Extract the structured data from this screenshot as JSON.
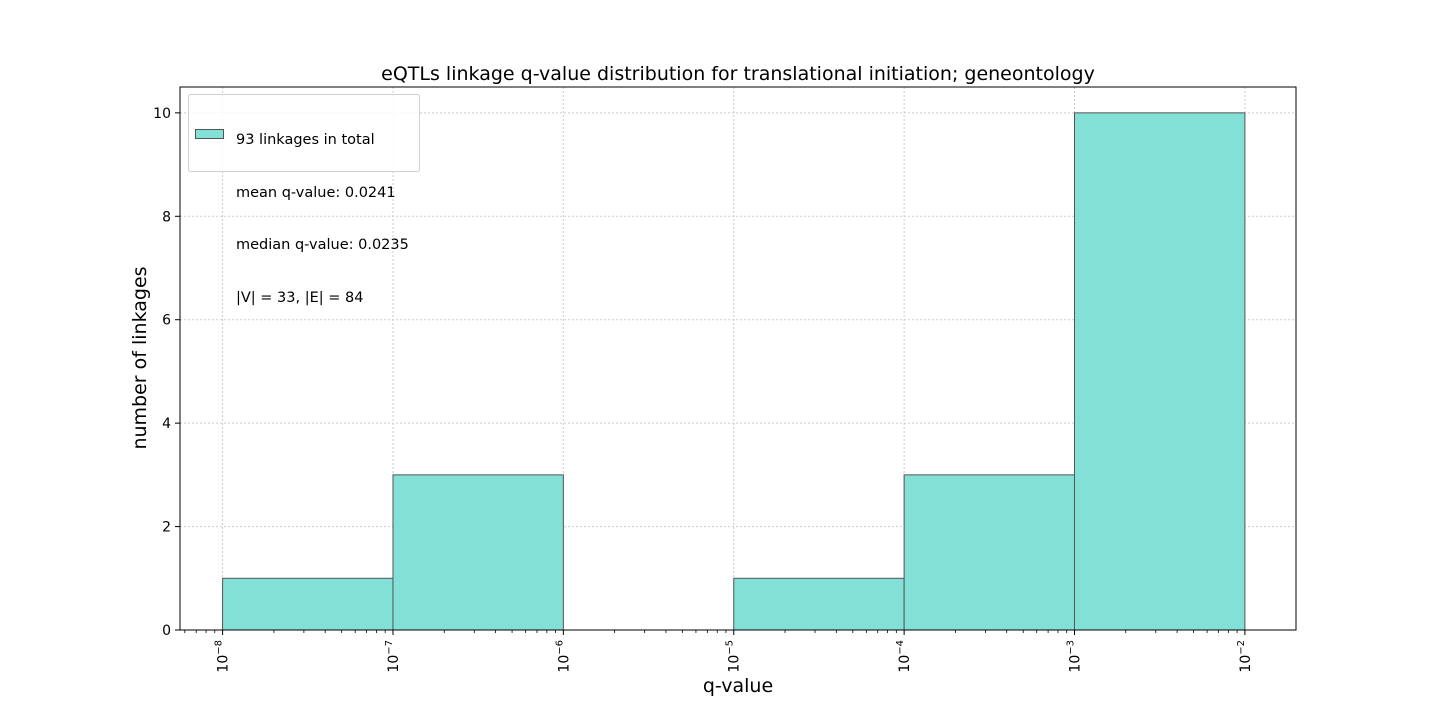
{
  "chart_data": {
    "type": "bar",
    "title": "eQTLs linkage q-value distribution for translational initiation; geneontology",
    "xlabel": "q-value",
    "ylabel": "number of linkages",
    "x_scale": "log",
    "xlim_exponent": [
      -8.25,
      -1.7
    ],
    "ylim": [
      0,
      10.5
    ],
    "grid": true,
    "bins": [
      {
        "range": [
          "1e-8",
          "1e-7"
        ],
        "value": 1
      },
      {
        "range": [
          "1e-7",
          "1e-6"
        ],
        "value": 3
      },
      {
        "range": [
          "1e-6",
          "1e-5"
        ],
        "value": 0
      },
      {
        "range": [
          "1e-5",
          "1e-4"
        ],
        "value": 1
      },
      {
        "range": [
          "1e-4",
          "1e-3"
        ],
        "value": 3
      },
      {
        "range": [
          "1e-3",
          "1e-2"
        ],
        "value": 10
      }
    ],
    "x_ticks": [
      {
        "exp": -8,
        "base": "10",
        "sup": "−8"
      },
      {
        "exp": -7,
        "base": "10",
        "sup": "−7"
      },
      {
        "exp": -6,
        "base": "10",
        "sup": "−6"
      },
      {
        "exp": -5,
        "base": "10",
        "sup": "−5"
      },
      {
        "exp": -4,
        "base": "10",
        "sup": "−4"
      },
      {
        "exp": -3,
        "base": "10",
        "sup": "−3"
      },
      {
        "exp": -2,
        "base": "10",
        "sup": "−2"
      }
    ],
    "y_ticks": [
      0,
      2,
      4,
      6,
      8,
      10
    ],
    "legend": {
      "position": "upper-left",
      "lines": [
        "93 linkages in total",
        "mean q-value: 0.0241",
        "median q-value: 0.0235",
        "|V| = 33, |E| = 84"
      ]
    },
    "colors": {
      "bar_fill": "#83e0d6",
      "bar_edge": "#555555",
      "grid": "#cccccc",
      "axis": "#000000"
    }
  }
}
